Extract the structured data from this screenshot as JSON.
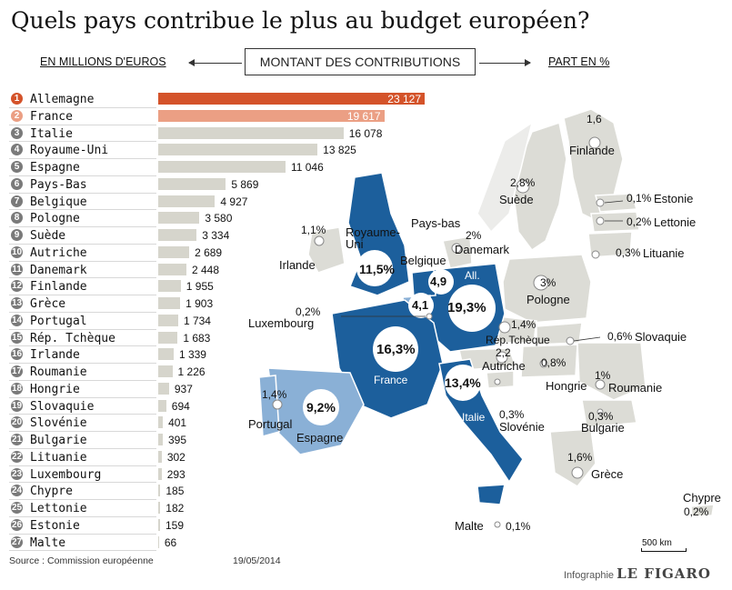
{
  "title": "Quels pays contribue le plus au budget européen?",
  "header": {
    "left": "EN MILLIONS D'EUROS",
    "center": "MONTANT DES CONTRIBUTIONS",
    "right": "PART EN %"
  },
  "colors": {
    "first": "#d4532a",
    "second": "#eb9f84",
    "bars": "#d6d5cc",
    "map_dark": "#1c5f9c",
    "map_light": "#8ab0d6",
    "map_grey": "#dcdcd6"
  },
  "chart_data": {
    "type": "bar",
    "orientation": "horizontal",
    "unit": "millions d'euros",
    "ranks": [
      "1",
      "2",
      "3",
      "4",
      "5",
      "6",
      "7",
      "8",
      "9",
      "10",
      "11",
      "12",
      "13",
      "14",
      "15",
      "16",
      "17",
      "18",
      "19",
      "20",
      "21",
      "22",
      "23",
      "24",
      "25",
      "26",
      "27"
    ],
    "categories": [
      "Allemagne",
      "France",
      "Italie",
      "Royaume-Uni",
      "Espagne",
      "Pays-Bas",
      "Belgique",
      "Pologne",
      "Suède",
      "Autriche",
      "Danemark",
      "Finlande",
      "Grèce",
      "Portugal",
      "Rép. Tchèque",
      "Irlande",
      "Roumanie",
      "Hongrie",
      "Slovaquie",
      "Slovénie",
      "Bulgarie",
      "Lituanie",
      "Luxembourg",
      "Chypre",
      "Lettonie",
      "Estonie",
      "Malte"
    ],
    "values": [
      23127,
      19617,
      16078,
      13825,
      11046,
      5869,
      4927,
      3580,
      3334,
      2689,
      2448,
      1955,
      1903,
      1734,
      1683,
      1339,
      1226,
      937,
      694,
      401,
      395,
      302,
      293,
      185,
      182,
      159,
      66
    ],
    "value_labels": [
      "23 127",
      "19 617",
      "16 078",
      "13 825",
      "11 046",
      "5 869",
      "4 927",
      "3 580",
      "3 334",
      "2 689",
      "2 448",
      "1 955",
      "1 903",
      "1 734",
      "1 683",
      "1 339",
      "1 226",
      "937",
      "694",
      "401",
      "395",
      "302",
      "293",
      "185",
      "182",
      "159",
      "66"
    ],
    "xlim": [
      0,
      23127
    ]
  },
  "map": {
    "big_shares": [
      {
        "label": "19,3%",
        "country": "All."
      },
      {
        "label": "16,3%",
        "country": "France"
      },
      {
        "label": "13,4%",
        "country": "Italie"
      },
      {
        "label": "11,5%",
        "country": "Royaume-Uni"
      },
      {
        "label": "9,2%",
        "country": "Espagne"
      },
      {
        "label": "4,9",
        "country": "Pays-bas"
      },
      {
        "label": "4,1",
        "country": "Belgique"
      }
    ],
    "labels": {
      "finlande_pct": "1,6",
      "finlande": "Finlande",
      "suede_pct": "2,8%",
      "suede": "Suède",
      "estonie_pct": "0,1%",
      "estonie": "Estonie",
      "lettonie_pct": "0,2%",
      "lettonie": "Lettonie",
      "lituanie_pct": "0,3%",
      "lituanie": "Lituanie",
      "irlande_pct": "1,1%",
      "irlande": "Irlande",
      "royaume_uni": "Royaume-Uni",
      "pays_bas": "Pays-bas",
      "danemark_pct": "2%",
      "danemark": "Danemark",
      "belgique": "Belgique",
      "pologne_pct": "3%",
      "pologne": "Pologne",
      "luxembourg_pct": "0,2%",
      "luxembourg": "Luxembourg",
      "rep_tcheque_pct": "1,4%",
      "rep_tcheque": "Rép.Tchèque",
      "slovaquie_pct": "0,6%",
      "slovaquie": "Slovaquie",
      "autriche_pct": "2,2",
      "autriche": "Autriche",
      "hongrie_pct": "0,8%",
      "hongrie": "Hongrie",
      "roumanie_pct": "1%",
      "roumanie": "Roumanie",
      "portugal_pct": "1,4%",
      "portugal": "Portugal",
      "espagne": "Espagne",
      "slovenie_pct": "0,3%",
      "slovenie": "Slovénie",
      "bulgarie_pct": "0,3%",
      "bulgarie": "Bulgarie",
      "grece_pct": "1,6%",
      "grece": "Grèce",
      "chypre": "Chypre",
      "chypre_pct": "0,2%",
      "malte": "Malte",
      "malte_pct": "0,1%",
      "france": "France",
      "italie": "Italie",
      "all": "All."
    },
    "scale": "500 km"
  },
  "footer": {
    "source": "Source : Commission européenne",
    "date": "19/05/2014",
    "credit_prefix": "Infographie",
    "credit_brand": "LE FIGARO"
  }
}
